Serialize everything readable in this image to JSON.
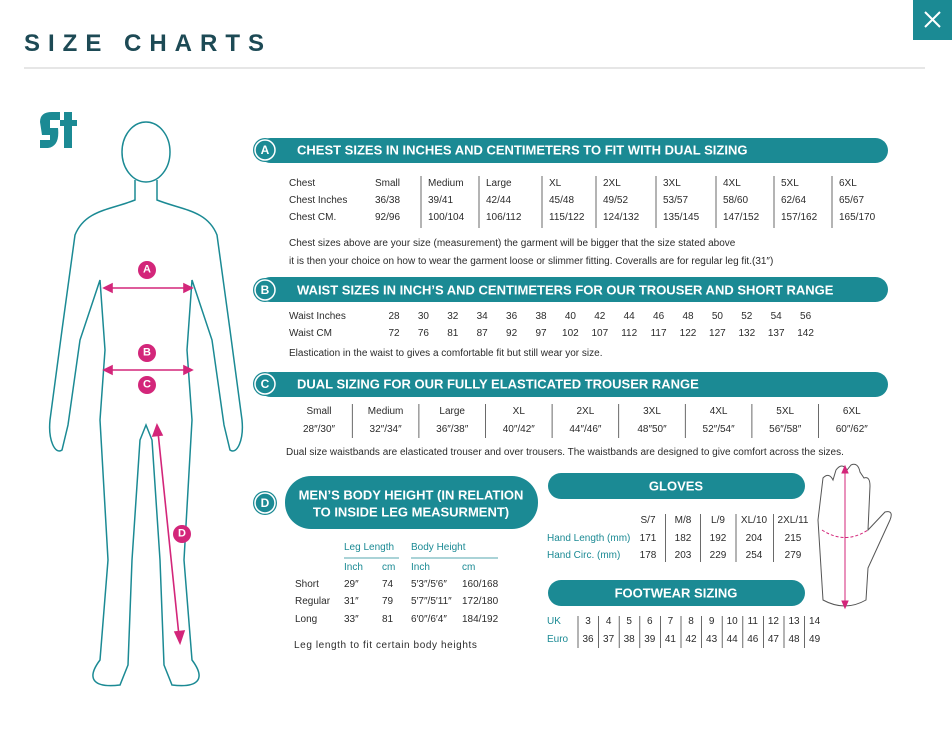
{
  "header": {
    "title": "SIZE CHARTS"
  },
  "figure": {
    "markers": [
      "A",
      "B",
      "C",
      "D"
    ]
  },
  "sections": {
    "chest": {
      "badge": "A",
      "title": "CHEST SIZES IN INCHES AND CENTIMETERS TO FIT WITH DUAL SIZING",
      "rows": [
        [
          "Chest",
          "Small",
          "Medium",
          "Large",
          "XL",
          "2XL",
          "3XL",
          "4XL",
          "5XL",
          "6XL"
        ],
        [
          "Chest Inches",
          "36/38",
          "39/41",
          "42/44",
          "45/48",
          "49/52",
          "53/57",
          "58/60",
          "62/64",
          "65/67"
        ],
        [
          "Chest CM.",
          "92/96",
          "100/104",
          "106/112",
          "115/122",
          "124/132",
          "135/145",
          "147/152",
          "157/162",
          "165/170"
        ]
      ],
      "notes": [
        "Chest sizes above are your size (measurement) the garment will be bigger that the size stated above",
        "it is then your choice on how to wear the garment loose or slimmer fitting. Coveralls are for regular leg fit.(31″)"
      ]
    },
    "waist": {
      "badge": "B",
      "title": "WAIST SIZES IN INCH’S AND CENTIMETERS FOR OUR TROUSER AND SHORT RANGE",
      "rows": [
        [
          "Waist Inches",
          "28",
          "30",
          "32",
          "34",
          "36",
          "38",
          "40",
          "42",
          "44",
          "46",
          "48",
          "50",
          "52",
          "54",
          "56"
        ],
        [
          "Waist CM",
          "72",
          "76",
          "81",
          "87",
          "92",
          "97",
          "102",
          "107",
          "112",
          "117",
          "122",
          "127",
          "132",
          "137",
          "142"
        ]
      ],
      "notes": [
        "Elastication in the waist to gives a comfortable fit but still wear yor size."
      ]
    },
    "dual": {
      "badge": "C",
      "title": "DUAL SIZING FOR OUR FULLY ELASTICATED TROUSER RANGE",
      "rows": [
        [
          "Small",
          "Medium",
          "Large",
          "XL",
          "2XL",
          "3XL",
          "4XL",
          "5XL",
          "6XL"
        ],
        [
          "28″/30″",
          "32″/34″",
          "36″/38″",
          "40″/42″",
          "44″/46″",
          "48″50″",
          "52″/54″",
          "56″/58″",
          "60″/62″"
        ]
      ],
      "notes": [
        "Dual size waistbands are elasticated trouser and over trousers. The waistbands are designed to give comfort across the sizes."
      ]
    },
    "height": {
      "badge": "D",
      "title": [
        "MEN’S BODY HEIGHT (IN RELATION",
        "TO INSIDE LEG MEASURMENT)"
      ],
      "groups": [
        "Leg Length",
        "Body Height"
      ],
      "units": [
        "Inch",
        "cm",
        "Inch",
        "cm"
      ],
      "rows": [
        [
          "Short",
          "29″",
          "74",
          "5′3″/5′6″",
          "160/168"
        ],
        [
          "Regular",
          "31″",
          "79",
          "5′7″/5′11″",
          "172/180"
        ],
        [
          "Long",
          "33″",
          "81",
          "6′0″/6′4″",
          "184/192"
        ]
      ],
      "notes": [
        "Leg length to fit certain body heights"
      ]
    },
    "gloves": {
      "title": "GLOVES",
      "sizes": [
        "S/7",
        "M/8",
        "L/9",
        "XL/10",
        "2XL/11"
      ],
      "rows": [
        [
          "Hand Length (mm)",
          "171",
          "182",
          "192",
          "204",
          "215"
        ],
        [
          "Hand Circ. (mm)",
          "178",
          "203",
          "229",
          "254",
          "279"
        ]
      ]
    },
    "footwear": {
      "title": "FOOTWEAR SIZING",
      "rows": [
        [
          "UK",
          "3",
          "4",
          "5",
          "6",
          "7",
          "8",
          "9",
          "10",
          "11",
          "12",
          "13",
          "14"
        ],
        [
          "Euro",
          "36",
          "37",
          "38",
          "39",
          "41",
          "42",
          "43",
          "44",
          "46",
          "47",
          "48",
          "49"
        ]
      ]
    }
  }
}
